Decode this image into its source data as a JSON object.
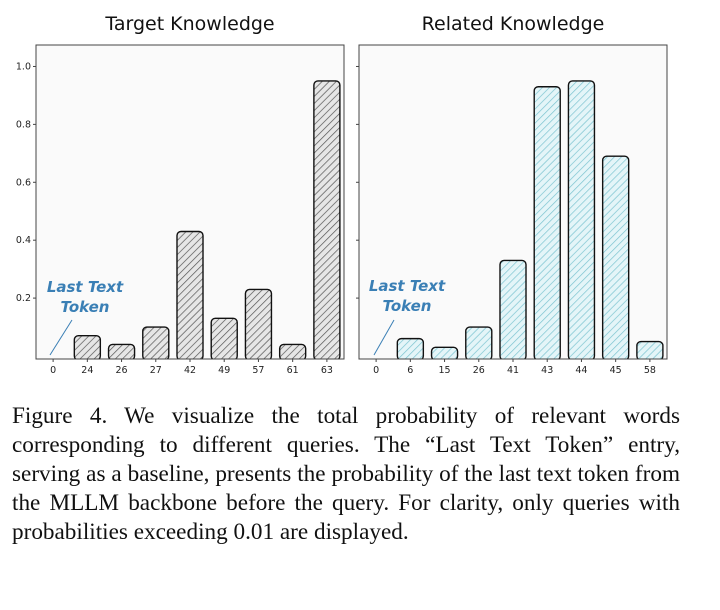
{
  "chart_data": [
    {
      "type": "bar",
      "title": "Target Knowledge",
      "categories": [
        "0",
        "24",
        "26",
        "27",
        "42",
        "49",
        "57",
        "61",
        "63"
      ],
      "values": [
        0.0,
        0.07,
        0.04,
        0.1,
        0.43,
        0.13,
        0.23,
        0.04,
        0.95
      ],
      "ylim": [
        0,
        1.05
      ],
      "yticks": [
        "0.2",
        "0.4",
        "0.6",
        "0.8",
        "1.0"
      ],
      "annotation": [
        "Last Text",
        "Token"
      ],
      "fill": "#e6e6e6",
      "hatch": "#555555"
    },
    {
      "type": "bar",
      "title": "Related Knowledge",
      "categories": [
        "0",
        "6",
        "15",
        "26",
        "41",
        "43",
        "44",
        "45",
        "58"
      ],
      "values": [
        0.0,
        0.06,
        0.03,
        0.1,
        0.33,
        0.93,
        0.95,
        0.69,
        0.05
      ],
      "ylim": [
        0,
        1.05
      ],
      "annotation": [
        "Last Text",
        "Token"
      ],
      "fill": "#e4f5f8",
      "hatch": "#7cc4d0"
    }
  ],
  "caption": "Figure 4. We visualize the total probability of relevant words corresponding to different queries. The “Last Text Token” entry, serving as a baseline, presents the probability of the last text token from the MLLM backbone before the query. For clarity, only queries with probabilities exceeding 0.01 are displayed."
}
